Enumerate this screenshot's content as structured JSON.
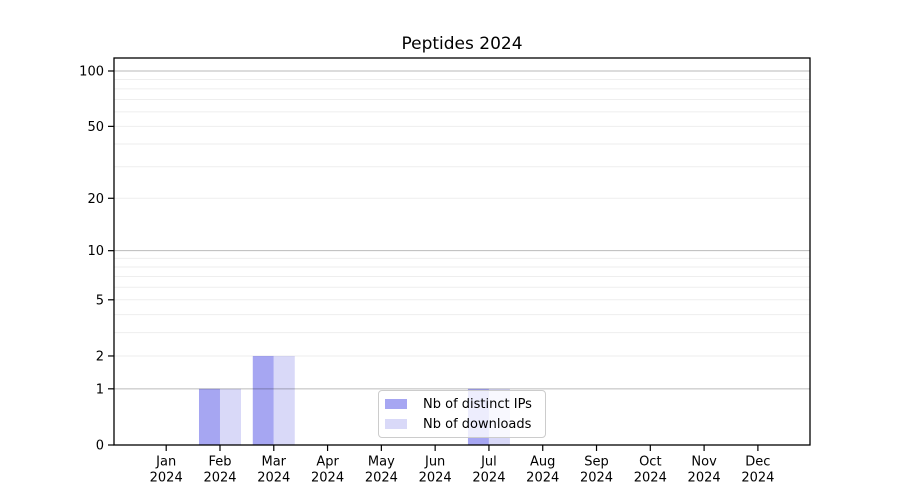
{
  "figure": {
    "background": "#ffffff"
  },
  "chart_data": {
    "type": "bar",
    "title": "Peptides 2024",
    "categories": [
      "Jan",
      "Feb",
      "Mar",
      "Apr",
      "May",
      "Jun",
      "Jul",
      "Aug",
      "Sep",
      "Oct",
      "Nov",
      "Dec"
    ],
    "category_year": "2024",
    "series": [
      {
        "name": "Nb of distinct IPs",
        "color": "#a6a6f2",
        "values": [
          0,
          1,
          2,
          0,
          0,
          0,
          1,
          0,
          0,
          0,
          0,
          0
        ]
      },
      {
        "name": "Nb of downloads",
        "color": "#d9d9f8",
        "values": [
          0,
          1,
          2,
          0,
          0,
          0,
          1,
          0,
          0,
          0,
          0,
          0
        ]
      }
    ],
    "xlabel": "",
    "ylabel": "",
    "yscale": "log1p",
    "ylim": [
      0,
      117
    ],
    "yticks": [
      0,
      1,
      2,
      5,
      10,
      20,
      50,
      100
    ],
    "major_gridlines": [
      1,
      10,
      100
    ],
    "minor_gridlines": [
      2,
      3,
      4,
      5,
      6,
      7,
      8,
      9,
      20,
      30,
      40,
      50,
      60,
      70,
      80,
      90
    ],
    "grid": true,
    "legend_position": "lower center"
  }
}
